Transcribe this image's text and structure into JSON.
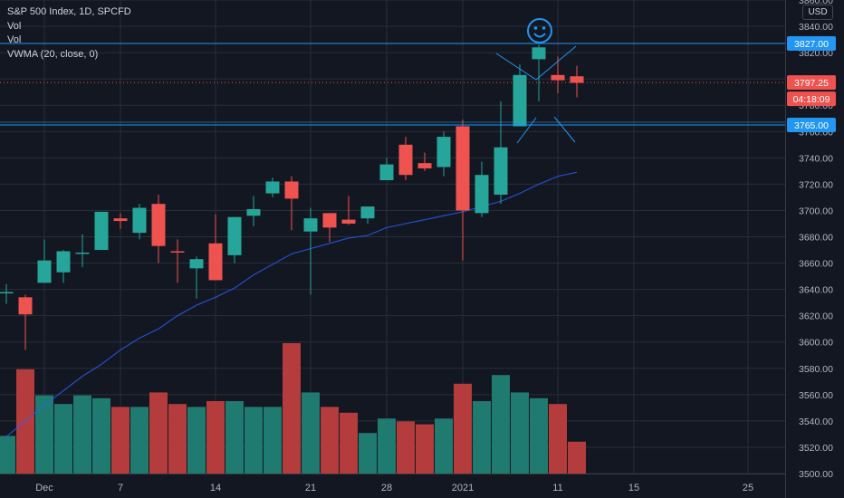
{
  "legend": {
    "symbol": "S&P 500 Index, 1D, SPCFD",
    "vol1": "Vol",
    "vol2": "Vol",
    "vwma": "VWMA (20, close, 0)"
  },
  "currency": "USD",
  "price_labels": {
    "upper_line": "3827.00",
    "current": "3797.25",
    "countdown": "04:18:09",
    "lower_line": "3765.00"
  },
  "colors": {
    "background": "#131722",
    "grid": "#2a2e39",
    "up": "#26a69a",
    "down": "#ef5350",
    "volume_up": "#1f7a70",
    "volume_down": "#b53c3c",
    "vwma": "#2962ff",
    "hline": "#2196f3",
    "annotation": "#2196f3"
  },
  "chart_data": {
    "type": "candlestick",
    "title": "S&P 500 Index, 1D, SPCFD",
    "x_ticks": [
      "Dec",
      "7",
      "14",
      "21",
      "28",
      "2021",
      "11",
      "15",
      "25"
    ],
    "y_ticks": [
      "3500.00",
      "3520.00",
      "3540.00",
      "3560.00",
      "3580.00",
      "3600.00",
      "3620.00",
      "3640.00",
      "3660.00",
      "3680.00",
      "3700.00",
      "3720.00",
      "3740.00",
      "3760.00",
      "3780.00",
      "3800.00",
      "3820.00",
      "3840.00",
      "3860.00"
    ],
    "ylim": [
      3500,
      3860
    ],
    "candles": [
      {
        "date": "Nov 27",
        "open": 3637,
        "high": 3644,
        "low": 3629,
        "close": 3638,
        "volume": 0.13
      },
      {
        "date": "Nov 30",
        "open": 3634,
        "high": 3636,
        "low": 3594,
        "close": 3621,
        "volume": 0.36
      },
      {
        "date": "Dec 1",
        "open": 3645,
        "high": 3678,
        "low": 3645,
        "close": 3662,
        "volume": 0.27
      },
      {
        "date": "Dec 2",
        "open": 3653,
        "high": 3670,
        "low": 3645,
        "close": 3669,
        "volume": 0.24
      },
      {
        "date": "Dec 3",
        "open": 3668,
        "high": 3682,
        "low": 3657,
        "close": 3668,
        "volume": 0.27
      },
      {
        "date": "Dec 4",
        "open": 3670,
        "high": 3699,
        "low": 3670,
        "close": 3699,
        "volume": 0.26
      },
      {
        "date": "Dec 7",
        "open": 3694,
        "high": 3698,
        "low": 3686,
        "close": 3692,
        "volume": 0.23
      },
      {
        "date": "Dec 8",
        "open": 3683,
        "high": 3705,
        "low": 3678,
        "close": 3702,
        "volume": 0.23
      },
      {
        "date": "Dec 9",
        "open": 3705,
        "high": 3712,
        "low": 3660,
        "close": 3673,
        "volume": 0.28
      },
      {
        "date": "Dec 10",
        "open": 3669,
        "high": 3678,
        "low": 3645,
        "close": 3668,
        "volume": 0.24
      },
      {
        "date": "Dec 11",
        "open": 3656,
        "high": 3665,
        "low": 3633,
        "close": 3663,
        "volume": 0.23
      },
      {
        "date": "Dec 14",
        "open": 3675,
        "high": 3697,
        "low": 3647,
        "close": 3647,
        "volume": 0.25
      },
      {
        "date": "Dec 15",
        "open": 3666,
        "high": 3695,
        "low": 3660,
        "close": 3695,
        "volume": 0.25
      },
      {
        "date": "Dec 16",
        "open": 3696,
        "high": 3711,
        "low": 3688,
        "close": 3701,
        "volume": 0.23
      },
      {
        "date": "Dec 17",
        "open": 3713,
        "high": 3725,
        "low": 3710,
        "close": 3722,
        "volume": 0.23
      },
      {
        "date": "Dec 18",
        "open": 3722,
        "high": 3726,
        "low": 3685,
        "close": 3709,
        "volume": 0.45
      },
      {
        "date": "Dec 21",
        "open": 3684,
        "high": 3702,
        "low": 3636,
        "close": 3694,
        "volume": 0.28
      },
      {
        "date": "Dec 22",
        "open": 3698,
        "high": 3698,
        "low": 3676,
        "close": 3687,
        "volume": 0.23
      },
      {
        "date": "Dec 23",
        "open": 3693,
        "high": 3711,
        "low": 3689,
        "close": 3690,
        "volume": 0.21
      },
      {
        "date": "Dec 24",
        "open": 3694,
        "high": 3703,
        "low": 3690,
        "close": 3703,
        "volume": 0.14
      },
      {
        "date": "Dec 28",
        "open": 3723,
        "high": 3740,
        "low": 3723,
        "close": 3735,
        "volume": 0.19
      },
      {
        "date": "Dec 29",
        "open": 3750,
        "high": 3756,
        "low": 3723,
        "close": 3727,
        "volume": 0.18
      },
      {
        "date": "Dec 30",
        "open": 3736,
        "high": 3744,
        "low": 3730,
        "close": 3732,
        "volume": 0.17
      },
      {
        "date": "Dec 31",
        "open": 3733,
        "high": 3760,
        "low": 3726,
        "close": 3756,
        "volume": 0.19
      },
      {
        "date": "Jan 4",
        "open": 3764,
        "high": 3769,
        "low": 3662,
        "close": 3700,
        "volume": 0.31
      },
      {
        "date": "Jan 5",
        "open": 3698,
        "high": 3737,
        "low": 3695,
        "close": 3727,
        "volume": 0.25
      },
      {
        "date": "Jan 6",
        "open": 3712,
        "high": 3783,
        "low": 3705,
        "close": 3748,
        "volume": 0.34
      },
      {
        "date": "Jan 7",
        "open": 3764,
        "high": 3811,
        "low": 3764,
        "close": 3803,
        "volume": 0.28
      },
      {
        "date": "Jan 8",
        "open": 3815,
        "high": 3826,
        "low": 3783,
        "close": 3824,
        "volume": 0.26
      },
      {
        "date": "Jan 11",
        "open": 3803,
        "high": 3817,
        "low": 3789,
        "close": 3799,
        "volume": 0.24
      },
      {
        "date": "Jan 12",
        "open": 3802,
        "high": 3810,
        "low": 3786,
        "close": 3797,
        "volume": 0.11
      }
    ],
    "vwma_20": [
      3528,
      3540,
      3552,
      3563,
      3574,
      3583,
      3594,
      3603,
      3610,
      3620,
      3628,
      3634,
      3641,
      3651,
      3659,
      3667,
      3671,
      3675,
      3679,
      3681,
      3687,
      3690,
      3693,
      3696,
      3699,
      3703,
      3707,
      3713,
      3720,
      3726,
      3729
    ],
    "horizontal_lines": [
      3827,
      3765
    ],
    "current_price": 3797.25,
    "annotations": [
      "smiley-face",
      "triangle-lines"
    ]
  }
}
